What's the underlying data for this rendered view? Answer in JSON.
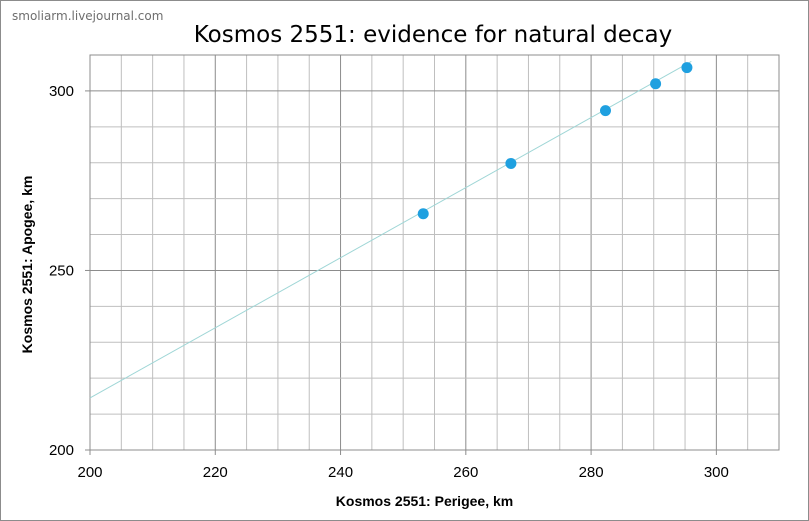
{
  "watermark": "smoliarm.livejournal.com",
  "chart_data": {
    "type": "scatter",
    "title": "Kosmos 2551: evidence for natural decay",
    "xlabel": "Kosmos 2551: Perigee, km",
    "ylabel": "Kosmos 2551: Apogee, km",
    "xlim": [
      200,
      310
    ],
    "ylim": [
      200,
      310
    ],
    "x_ticks": [
      200,
      220,
      240,
      260,
      280,
      300
    ],
    "y_ticks": [
      200,
      250,
      300
    ],
    "x_minor_step": 5,
    "y_minor_step": 10,
    "grid": true,
    "legend": "none",
    "series": [
      {
        "points": [
          {
            "x": 253.2,
            "y": 265.8
          },
          {
            "x": 267.2,
            "y": 279.8
          },
          {
            "x": 282.3,
            "y": 294.5
          },
          {
            "x": 290.3,
            "y": 302.0
          },
          {
            "x": 295.3,
            "y": 306.5
          }
        ],
        "color": "#1fa0e0"
      }
    ],
    "trendline": {
      "type": "linear",
      "from": {
        "x": 200,
        "y": 214.5
      },
      "to": {
        "x": 296,
        "y": 308.2
      },
      "color": "#9fd6d6"
    }
  }
}
